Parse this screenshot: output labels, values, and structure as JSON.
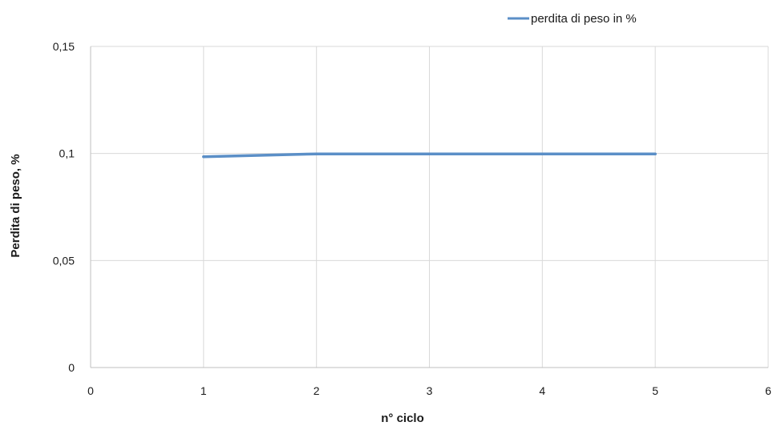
{
  "chart_data": {
    "type": "line",
    "title": "",
    "xlabel": "n° ciclo",
    "ylabel": "Perdita di peso, %",
    "xlim": [
      0,
      6
    ],
    "ylim": [
      0,
      0.15
    ],
    "x_ticks": [
      0,
      1,
      2,
      3,
      4,
      5,
      6
    ],
    "x_tick_labels": [
      "0",
      "1",
      "2",
      "3",
      "4",
      "5",
      "6"
    ],
    "y_ticks": [
      0,
      0.05,
      0.1,
      0.15
    ],
    "y_tick_labels": [
      "0",
      "0,05",
      "0,1",
      "0,15"
    ],
    "grid": true,
    "legend_position": "top-right",
    "series": [
      {
        "name": "perdita di peso in %",
        "color": "#5b8fc7",
        "x": [
          1,
          2,
          3,
          4,
          5
        ],
        "y": [
          0.0985,
          0.0998,
          0.0998,
          0.0998,
          0.0998
        ]
      }
    ]
  }
}
